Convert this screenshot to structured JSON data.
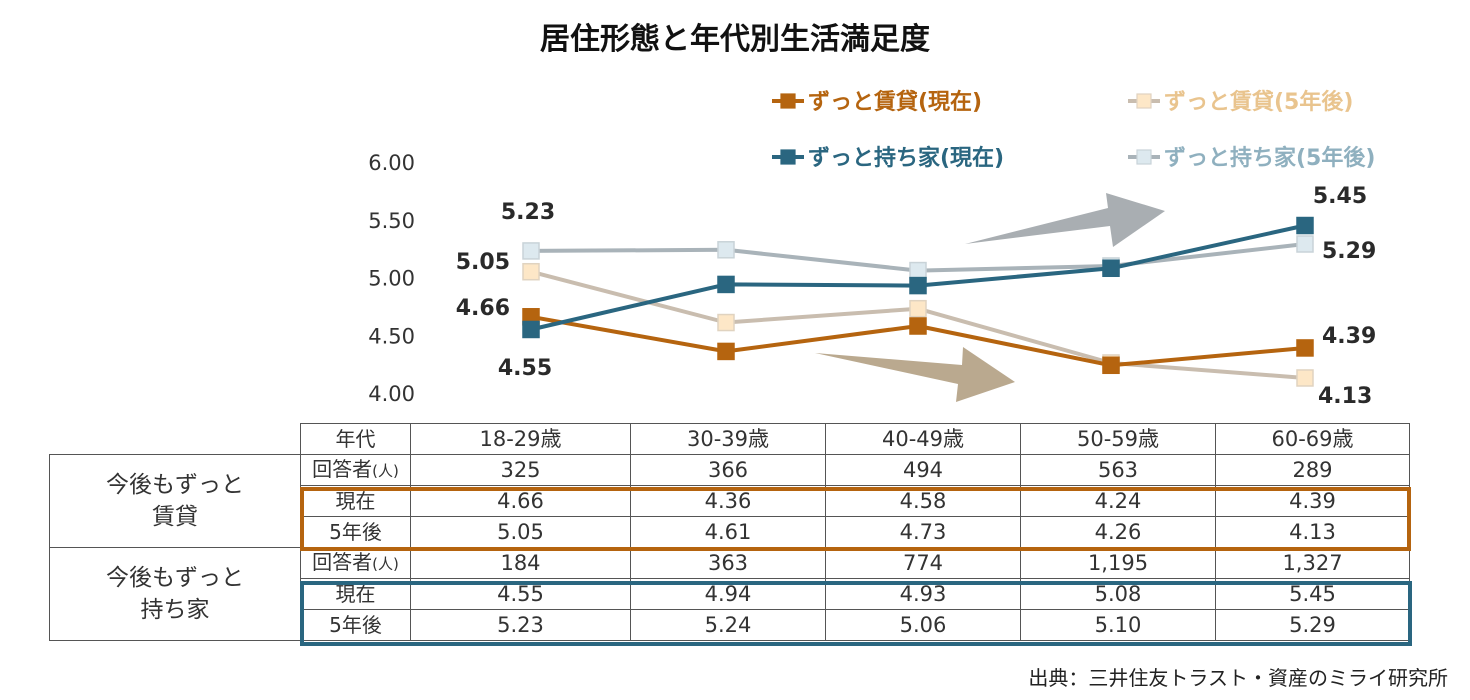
{
  "title": "居住形態と年代別生活満足度",
  "source": "出典：三井住友トラスト・資産のミライ研究所",
  "colors": {
    "rent_current": "#b5640f",
    "rent_5yr_line": "#c9bdaf",
    "rent_5yr_fill": "#fde7c7",
    "rent_5yr_text": "#e9c48e",
    "owner_current": "#2a6680",
    "owner_5yr_line": "#a9b3b9",
    "owner_5yr_fill": "#dde9ef",
    "owner_5yr_text": "#8fb0bf",
    "arrow_up": "#a9aeb2",
    "arrow_down": "#baa98f"
  },
  "chart_data": {
    "type": "line",
    "title": "居住形態と年代別生活満足度",
    "categories": [
      "18-29歳",
      "30-39歳",
      "40-49歳",
      "50-59歳",
      "60-69歳"
    ],
    "ylim": [
      4.0,
      6.0
    ],
    "yticks": [
      "6.00",
      "5.50",
      "5.00",
      "4.50",
      "4.00"
    ],
    "ytick_values": [
      6.0,
      5.5,
      5.0,
      4.5,
      4.0
    ],
    "grid": false,
    "legend_placement": "top-right",
    "series": [
      {
        "key": "rent_current",
        "name": "ずっと賃貸(現在)",
        "values": [
          4.66,
          4.36,
          4.58,
          4.24,
          4.39
        ]
      },
      {
        "key": "rent_5yr",
        "name": "ずっと賃貸(5年後)",
        "values": [
          5.05,
          4.61,
          4.73,
          4.26,
          4.13
        ]
      },
      {
        "key": "owner_current",
        "name": "ずっと持ち家(現在)",
        "values": [
          4.55,
          4.94,
          4.93,
          5.08,
          5.45
        ]
      },
      {
        "key": "owner_5yr",
        "name": "ずっと持ち家(5年後)",
        "values": [
          5.23,
          5.24,
          5.06,
          5.1,
          5.29
        ]
      }
    ],
    "data_labels": {
      "first": {
        "rent_current": "4.66",
        "rent_5yr": "5.05",
        "owner_current": "4.55",
        "owner_5yr": "5.23"
      },
      "last": {
        "rent_current": "4.39",
        "rent_5yr": "4.13",
        "owner_current": "5.45",
        "owner_5yr": "5.29"
      }
    },
    "annotations": [
      "upward trend arrow (gray)",
      "downward trend arrow (tan)"
    ]
  },
  "table": {
    "header_label": "年代",
    "columns": [
      "18-29歳",
      "30-39歳",
      "40-49歳",
      "50-59歳",
      "60-69歳"
    ],
    "groups": [
      {
        "label_line1": "今後もずっと",
        "label_line2": "賃貸",
        "rows": [
          {
            "label": "回答者",
            "unit": "(人)",
            "values": [
              "325",
              "366",
              "494",
              "563",
              "289"
            ]
          },
          {
            "label": "現在",
            "unit": "",
            "values": [
              "4.66",
              "4.36",
              "4.58",
              "4.24",
              "4.39"
            ]
          },
          {
            "label": "5年後",
            "unit": "",
            "values": [
              "5.05",
              "4.61",
              "4.73",
              "4.26",
              "4.13"
            ]
          }
        ]
      },
      {
        "label_line1": "今後もずっと",
        "label_line2": "持ち家",
        "rows": [
          {
            "label": "回答者",
            "unit": "(人)",
            "values": [
              "184",
              "363",
              "774",
              "1,195",
              "1,327"
            ]
          },
          {
            "label": "現在",
            "unit": "",
            "values": [
              "4.55",
              "4.94",
              "4.93",
              "5.08",
              "5.45"
            ]
          },
          {
            "label": "5年後",
            "unit": "",
            "values": [
              "5.23",
              "5.24",
              "5.06",
              "5.10",
              "5.29"
            ]
          }
        ]
      }
    ]
  }
}
